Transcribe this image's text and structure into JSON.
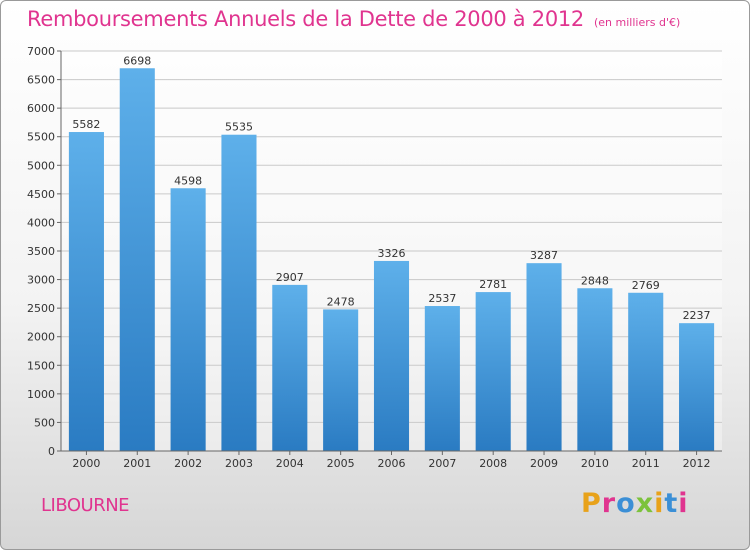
{
  "chart_data": {
    "type": "bar",
    "title": "Remboursements Annuels de la Dette de 2000 à 2012",
    "subtitle": "(en milliers d'€)",
    "categories": [
      "2000",
      "2001",
      "2002",
      "2003",
      "2004",
      "2005",
      "2006",
      "2007",
      "2008",
      "2009",
      "2010",
      "2011",
      "2012"
    ],
    "values": [
      5582,
      6698,
      4598,
      5535,
      2907,
      2478,
      3326,
      2537,
      2781,
      3287,
      2848,
      2769,
      2237
    ],
    "ylim": [
      0,
      7000
    ],
    "yticks": [
      0,
      500,
      1000,
      1500,
      2000,
      2500,
      3000,
      3500,
      4000,
      4500,
      5000,
      5500,
      6000,
      6500,
      7000
    ],
    "grid": true,
    "bar_color": "#3d8fd4"
  },
  "footer": {
    "city": "LIBOURNE",
    "logo": "Proxiti",
    "logo_colors": [
      "#e8a21a",
      "#e0348f",
      "#3b8fd6",
      "#7cc23c",
      "#e8a21a",
      "#3b8fd6",
      "#e0348f"
    ]
  }
}
